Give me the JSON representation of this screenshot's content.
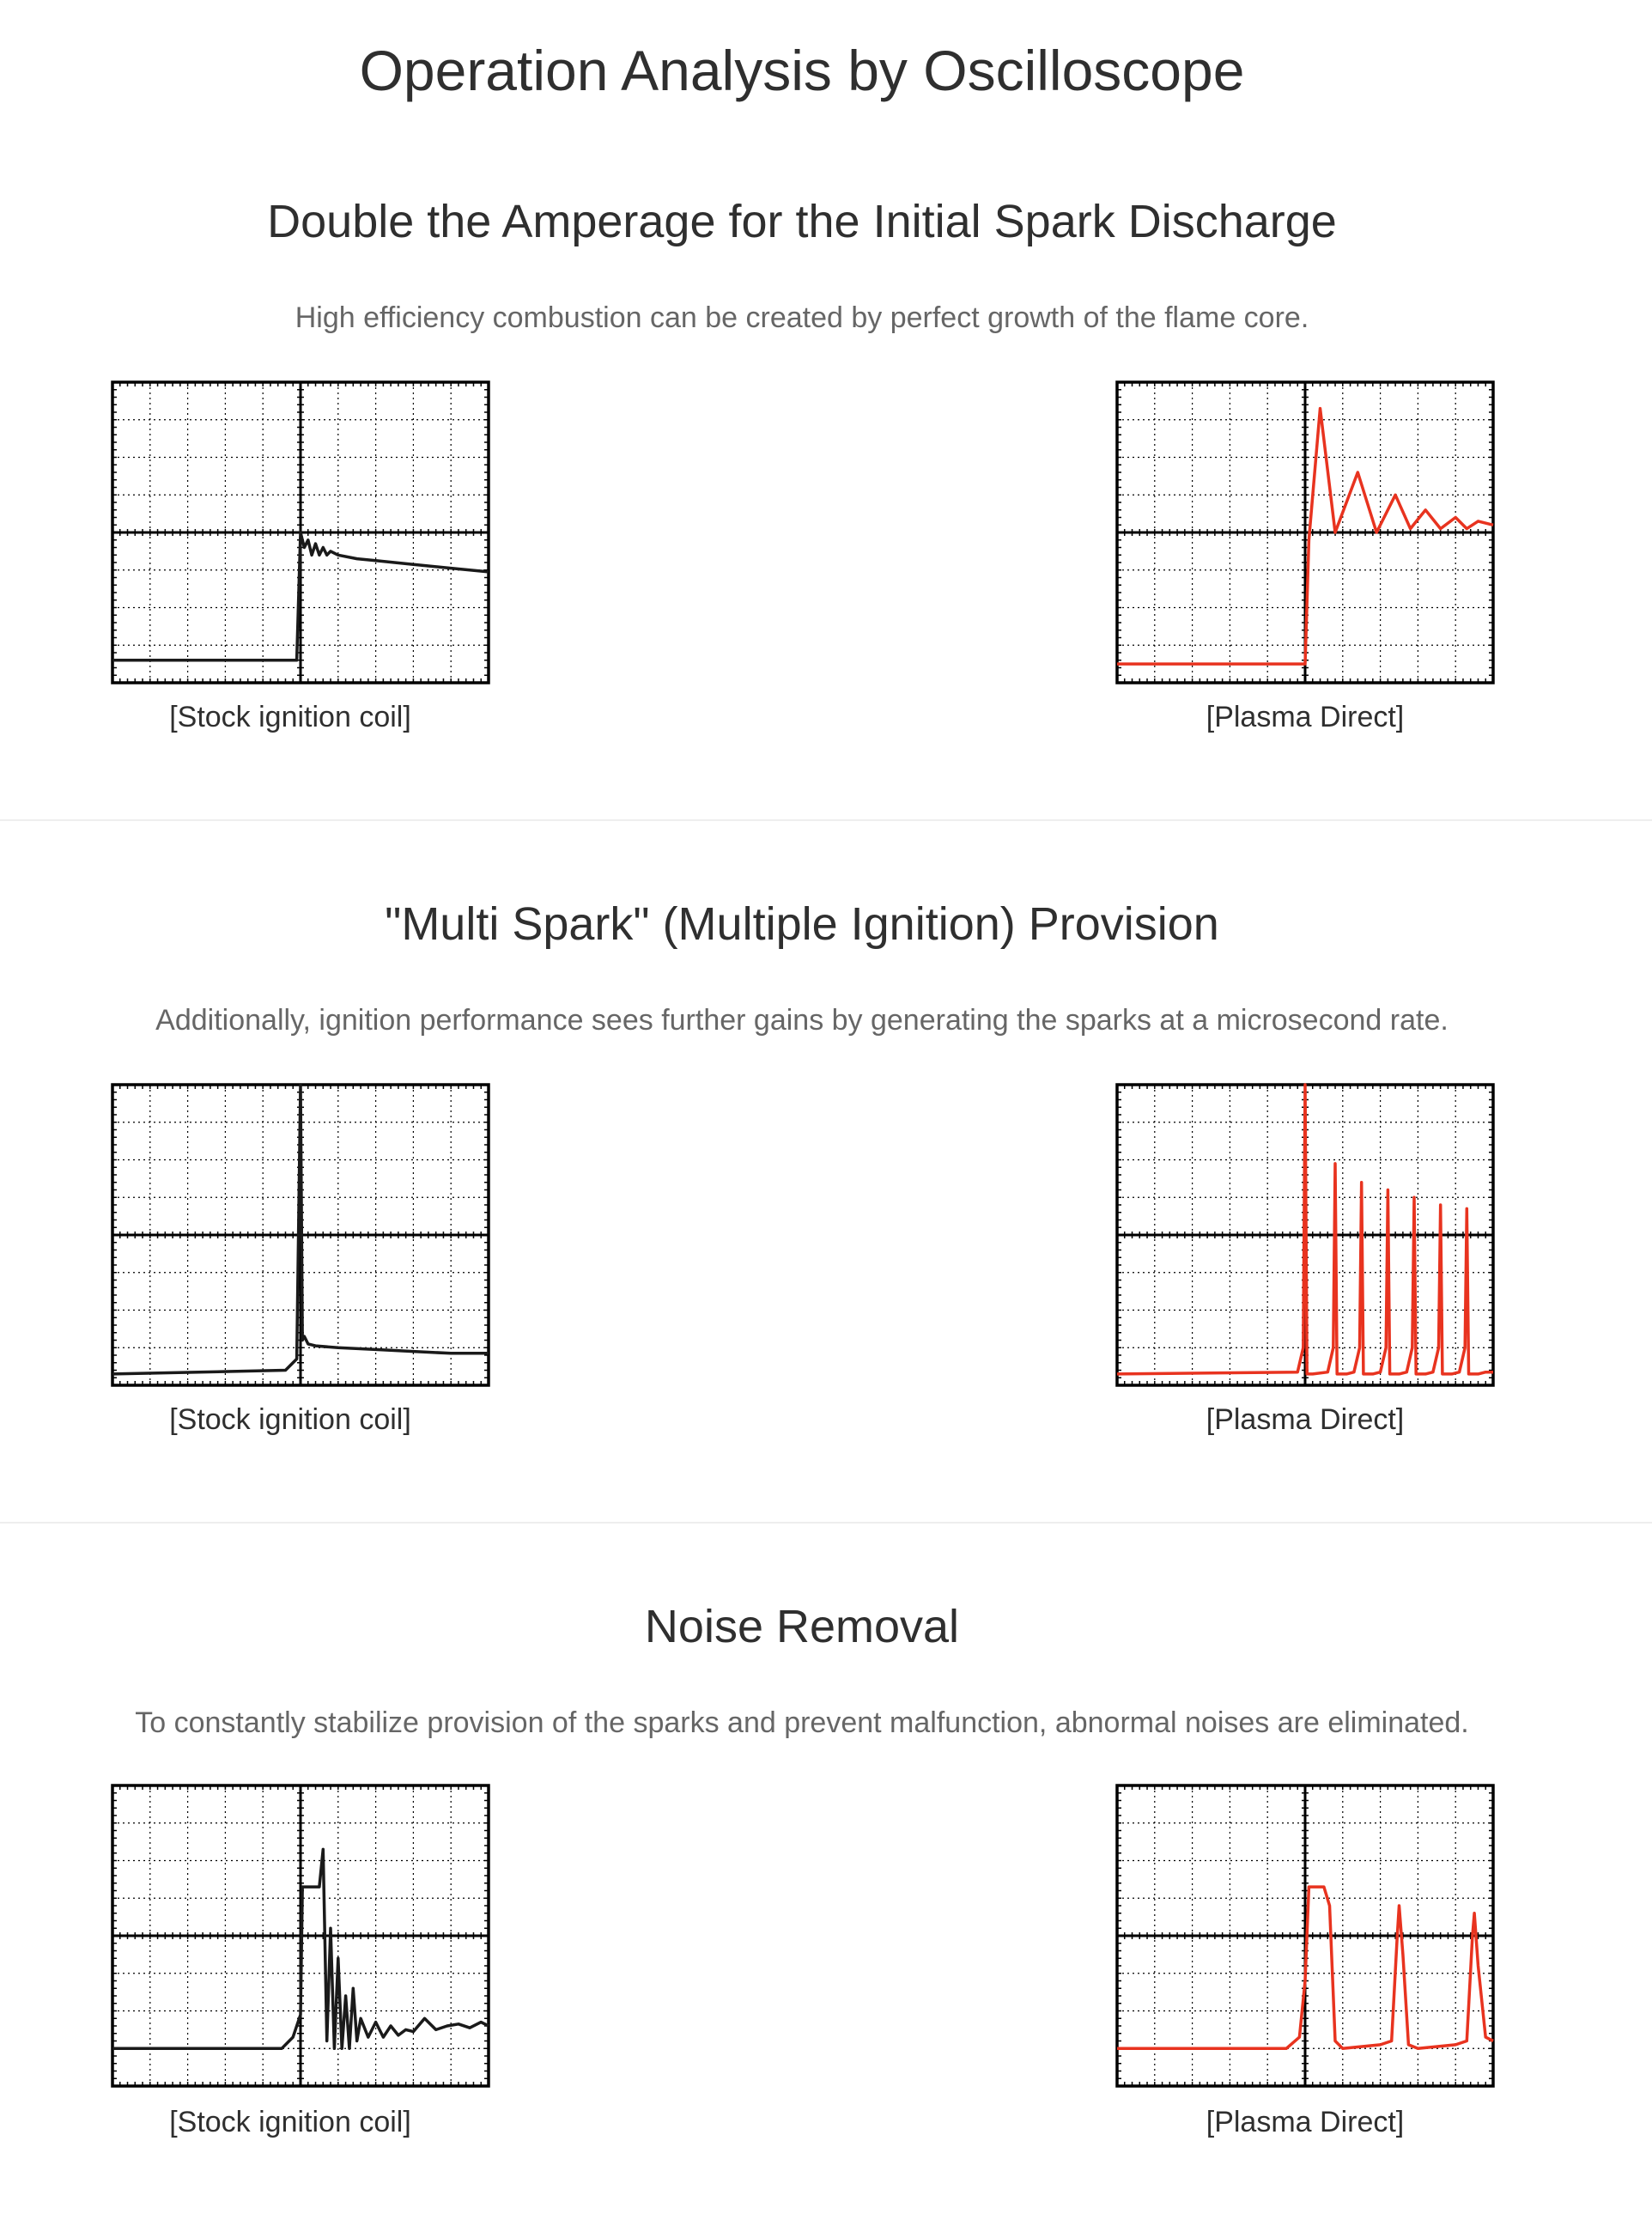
{
  "page": {
    "title": "Operation Analysis by Oscilloscope"
  },
  "sections": [
    {
      "title": "Double the Amperage for the Initial Spark Discharge",
      "description": "High efficiency combustion can be created by perfect growth of the flame core.",
      "left_caption": "[Stock ignition coil]",
      "right_caption": "[Plasma Direct]"
    },
    {
      "title": "\"Multi Spark\" (Multiple Ignition) Provision",
      "description": "Additionally, ignition performance sees further gains by generating the sparks at a microsecond rate.",
      "left_caption": "[Stock ignition coil]",
      "right_caption": "[Plasma Direct]"
    },
    {
      "title": "Noise Removal",
      "description": "To constantly stabilize provision of the sparks and prevent malfunction, abnormal noises are eliminated.",
      "left_caption": "[Stock ignition coil]",
      "right_caption": "[Plasma Direct]"
    }
  ],
  "colors": {
    "stock_trace": "#1a1a1a",
    "plasma_trace": "#e8331f",
    "grid": "#000000"
  },
  "chart_data": [
    {
      "type": "line",
      "title": "Double the Amperage for the Initial Spark Discharge - Stock ignition coil",
      "grid": true,
      "xlim": [
        0,
        10
      ],
      "ylim": [
        0,
        8
      ],
      "series": [
        {
          "name": "Stock ignition coil",
          "color": "#1a1a1a",
          "x": [
            0,
            4.9,
            5.0,
            5.1,
            5.2,
            5.3,
            5.4,
            5.5,
            5.6,
            5.7,
            5.8,
            6.0,
            6.5,
            7.0,
            8.0,
            9.0,
            10.0
          ],
          "y": [
            0.6,
            0.6,
            4.0,
            3.6,
            3.8,
            3.4,
            3.7,
            3.4,
            3.6,
            3.4,
            3.5,
            3.4,
            3.3,
            3.25,
            3.15,
            3.05,
            2.95
          ]
        }
      ]
    },
    {
      "type": "line",
      "title": "Double the Amperage for the Initial Spark Discharge - Plasma Direct",
      "grid": true,
      "xlim": [
        0,
        10
      ],
      "ylim": [
        0,
        8
      ],
      "series": [
        {
          "name": "Plasma Direct",
          "color": "#e8331f",
          "x": [
            0,
            5.0,
            5.1,
            5.4,
            5.8,
            6.4,
            6.9,
            7.4,
            7.8,
            8.2,
            8.6,
            9.0,
            9.3,
            9.6,
            10.0
          ],
          "y": [
            0.5,
            0.5,
            3.8,
            7.3,
            4.0,
            5.6,
            4.0,
            5.0,
            4.1,
            4.6,
            4.1,
            4.4,
            4.1,
            4.3,
            4.2
          ]
        }
      ]
    },
    {
      "type": "line",
      "title": "\"Multi Spark\" (Multiple Ignition) Provision - Stock ignition coil",
      "grid": true,
      "xlim": [
        0,
        10
      ],
      "ylim": [
        0,
        8
      ],
      "series": [
        {
          "name": "Stock ignition coil",
          "color": "#1a1a1a",
          "x": [
            0,
            4.6,
            4.9,
            5.0,
            5.05,
            5.1,
            5.2,
            5.4,
            6.0,
            7.0,
            8.0,
            9.0,
            10.0
          ],
          "y": [
            0.3,
            0.4,
            0.7,
            8.0,
            1.2,
            1.3,
            1.1,
            1.05,
            1.0,
            0.95,
            0.9,
            0.85,
            0.85
          ]
        }
      ]
    },
    {
      "type": "line",
      "title": "\"Multi Spark\" (Multiple Ignition) Provision - Plasma Direct",
      "grid": true,
      "xlim": [
        0,
        10
      ],
      "ylim": [
        0,
        8
      ],
      "series": [
        {
          "name": "Plasma Direct",
          "color": "#e8331f",
          "x": [
            0,
            4.8,
            4.95,
            5.0,
            5.05,
            5.2,
            5.6,
            5.75,
            5.8,
            5.85,
            6.1,
            6.3,
            6.45,
            6.5,
            6.55,
            6.8,
            7.0,
            7.15,
            7.2,
            7.25,
            7.5,
            7.7,
            7.85,
            7.9,
            7.95,
            8.2,
            8.4,
            8.55,
            8.6,
            8.65,
            8.9,
            9.1,
            9.25,
            9.3,
            9.35,
            9.6,
            9.8,
            10.0
          ],
          "y": [
            0.3,
            0.35,
            1.0,
            8.0,
            0.3,
            0.3,
            0.35,
            1.0,
            5.9,
            0.3,
            0.3,
            0.35,
            1.0,
            5.4,
            0.3,
            0.3,
            0.35,
            1.0,
            5.2,
            0.3,
            0.3,
            0.35,
            1.0,
            5.0,
            0.3,
            0.3,
            0.35,
            1.0,
            4.8,
            0.3,
            0.3,
            0.35,
            1.0,
            4.7,
            0.3,
            0.3,
            0.35,
            0.35
          ]
        }
      ]
    },
    {
      "type": "line",
      "title": "Noise Removal - Stock ignition coil",
      "grid": true,
      "xlim": [
        0,
        10
      ],
      "ylim": [
        0,
        8
      ],
      "series": [
        {
          "name": "Stock ignition coil",
          "color": "#1a1a1a",
          "x": [
            0,
            4.5,
            4.8,
            5.0,
            5.05,
            5.5,
            5.6,
            5.7,
            5.8,
            5.9,
            6.0,
            6.1,
            6.2,
            6.3,
            6.4,
            6.5,
            6.6,
            6.8,
            7.0,
            7.2,
            7.4,
            7.6,
            7.8,
            8.0,
            8.3,
            8.6,
            8.9,
            9.2,
            9.5,
            9.8,
            10.0
          ],
          "y": [
            1.0,
            1.0,
            1.3,
            1.9,
            5.3,
            5.3,
            6.3,
            1.2,
            4.2,
            1.0,
            3.4,
            1.0,
            2.4,
            1.0,
            2.6,
            1.2,
            1.8,
            1.3,
            1.7,
            1.3,
            1.6,
            1.35,
            1.5,
            1.45,
            1.8,
            1.5,
            1.6,
            1.65,
            1.55,
            1.7,
            1.6
          ]
        }
      ]
    },
    {
      "type": "line",
      "title": "Noise Removal - Plasma Direct",
      "grid": true,
      "xlim": [
        0,
        10
      ],
      "ylim": [
        0,
        8
      ],
      "series": [
        {
          "name": "Plasma Direct",
          "color": "#e8331f",
          "x": [
            0,
            4.5,
            4.85,
            5.0,
            5.1,
            5.5,
            5.65,
            5.8,
            6.0,
            7.0,
            7.3,
            7.45,
            7.5,
            7.6,
            7.75,
            8.0,
            9.0,
            9.3,
            9.45,
            9.5,
            9.6,
            9.8,
            10.0
          ],
          "y": [
            1.0,
            1.0,
            1.3,
            2.8,
            5.3,
            5.3,
            4.8,
            1.2,
            1.0,
            1.1,
            1.2,
            4.0,
            4.8,
            3.5,
            1.1,
            1.0,
            1.1,
            1.2,
            4.0,
            4.6,
            3.2,
            1.3,
            1.2
          ]
        }
      ]
    }
  ]
}
